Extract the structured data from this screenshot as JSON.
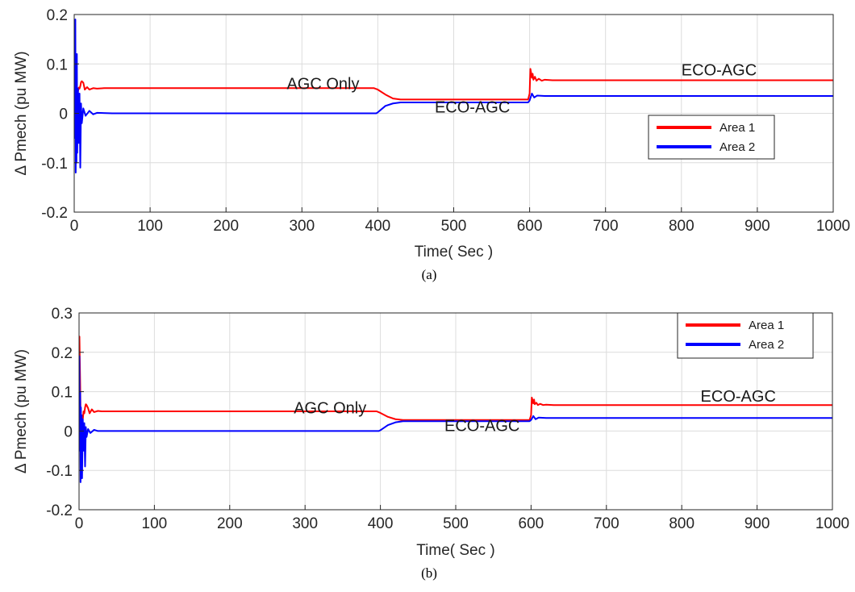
{
  "chart_data": [
    {
      "type": "line",
      "panel": "(a)",
      "caption": "(a)",
      "xlabel": "Time( Sec )",
      "ylabel": "Δ Pmech (pu MW)",
      "xlim": [
        0,
        1000
      ],
      "ylim": [
        -0.2,
        0.2
      ],
      "xticks": [
        0,
        100,
        200,
        300,
        400,
        500,
        600,
        700,
        800,
        900,
        1000
      ],
      "yticks": [
        -0.2,
        -0.1,
        0,
        0.1,
        0.2
      ],
      "ytick_labels": [
        "-0.2",
        "-0.1",
        "0",
        "0.1",
        "0.2"
      ],
      "grid": true,
      "legend_position": "right",
      "series": [
        {
          "name": "Area 1",
          "color": "#ff0000",
          "x": [
            0,
            0.5,
            1,
            1.5,
            2,
            3,
            4,
            5,
            6,
            7,
            8,
            9,
            10,
            12,
            14,
            17,
            20,
            25,
            30,
            40,
            60,
            100,
            200,
            300,
            395,
            400,
            410,
            420,
            430,
            500,
            598,
            600,
            601,
            602,
            603,
            604,
            605,
            607,
            609,
            612,
            616,
            620,
            630,
            700,
            800,
            900,
            1000
          ],
          "y": [
            0,
            0.185,
            0.15,
            0.11,
            0.04,
            0.02,
            0.035,
            0.045,
            0.052,
            0.05,
            0.055,
            0.063,
            0.065,
            0.062,
            0.048,
            0.053,
            0.048,
            0.051,
            0.05,
            0.051,
            0.051,
            0.051,
            0.051,
            0.051,
            0.051,
            0.048,
            0.038,
            0.03,
            0.028,
            0.028,
            0.028,
            0.04,
            0.09,
            0.082,
            0.072,
            0.08,
            0.068,
            0.074,
            0.066,
            0.07,
            0.066,
            0.068,
            0.067,
            0.067,
            0.067,
            0.067,
            0.067
          ]
        },
        {
          "name": "Area 2",
          "color": "#0000ff",
          "x": [
            0,
            0.5,
            1,
            1.5,
            2,
            2.5,
            3,
            3.5,
            4,
            5,
            6,
            7,
            8,
            9,
            10,
            12,
            15,
            20,
            25,
            30,
            50,
            100,
            200,
            300,
            398,
            400,
            410,
            420,
            430,
            500,
            598,
            600,
            603,
            606,
            610,
            620,
            700,
            800,
            900,
            1000
          ],
          "y": [
            0,
            0.18,
            -0.05,
            0.19,
            -0.12,
            0.09,
            -0.1,
            0.12,
            -0.08,
            0.05,
            -0.06,
            0.04,
            -0.11,
            0.02,
            -0.02,
            0.01,
            -0.005,
            0.005,
            -0.002,
            0.001,
            0,
            0,
            0,
            0,
            0,
            0.002,
            0.015,
            0.02,
            0.022,
            0.022,
            0.022,
            0.026,
            0.04,
            0.032,
            0.036,
            0.035,
            0.035,
            0.035,
            0.035,
            0.035
          ]
        }
      ],
      "annotations": [
        {
          "text": "AGC Only",
          "x": 280,
          "y": 0.049
        },
        {
          "text": "ECO-AGC",
          "x": 475,
          "y": 0.002
        },
        {
          "text": "ECO-AGC",
          "x": 800,
          "y": 0.077
        }
      ]
    },
    {
      "type": "line",
      "panel": "(b)",
      "caption": "(b)",
      "xlabel": "Time( Sec )",
      "ylabel": "Δ Pmech (pu MW)",
      "xlim": [
        0,
        1000
      ],
      "ylim": [
        -0.2,
        0.3
      ],
      "xticks": [
        0,
        100,
        200,
        300,
        400,
        500,
        600,
        700,
        800,
        900,
        1000
      ],
      "yticks": [
        -0.2,
        -0.1,
        0,
        0.1,
        0.2,
        0.3
      ],
      "ytick_labels": [
        "-0.2",
        "-0.1",
        "0",
        "0.1",
        "0.2",
        "0.3"
      ],
      "grid": true,
      "legend_position": "top-right",
      "series": [
        {
          "name": "Area 1",
          "color": "#ff0000",
          "x": [
            0,
            0.5,
            1,
            1.5,
            2,
            3,
            4,
            5,
            6,
            7,
            8,
            9,
            10,
            12,
            14,
            17,
            20,
            25,
            30,
            40,
            60,
            100,
            200,
            300,
            395,
            400,
            410,
            420,
            430,
            500,
            598,
            600,
            601,
            602,
            603,
            604,
            605,
            607,
            609,
            612,
            616,
            620,
            630,
            700,
            800,
            900,
            1000
          ],
          "y": [
            0,
            0.24,
            0.18,
            0.12,
            0.05,
            0.01,
            0.04,
            0.03,
            0.05,
            0.045,
            0.06,
            0.068,
            0.066,
            0.058,
            0.045,
            0.055,
            0.048,
            0.051,
            0.05,
            0.05,
            0.05,
            0.05,
            0.05,
            0.05,
            0.05,
            0.046,
            0.036,
            0.03,
            0.028,
            0.028,
            0.028,
            0.04,
            0.085,
            0.078,
            0.07,
            0.08,
            0.068,
            0.072,
            0.066,
            0.069,
            0.066,
            0.067,
            0.066,
            0.066,
            0.066,
            0.066,
            0.066
          ]
        },
        {
          "name": "Area 2",
          "color": "#0000ff",
          "x": [
            0,
            0.5,
            1,
            1.5,
            2,
            2.5,
            3,
            3.5,
            4,
            5,
            6,
            7,
            8,
            9,
            10,
            12,
            15,
            20,
            25,
            30,
            50,
            100,
            200,
            300,
            398,
            400,
            410,
            420,
            430,
            500,
            598,
            600,
            603,
            606,
            610,
            620,
            700,
            800,
            900,
            1000
          ],
          "y": [
            0,
            0.19,
            -0.05,
            0.1,
            -0.13,
            0.06,
            -0.08,
            0.04,
            -0.12,
            0.03,
            -0.05,
            0.02,
            -0.09,
            0.01,
            -0.015,
            0.005,
            -0.005,
            0.003,
            0,
            0,
            0,
            0,
            0,
            0,
            0,
            0.002,
            0.015,
            0.022,
            0.025,
            0.025,
            0.025,
            0.028,
            0.038,
            0.03,
            0.034,
            0.033,
            0.033,
            0.033,
            0.033,
            0.033
          ]
        }
      ],
      "annotations": [
        {
          "text": "AGC Only",
          "x": 285,
          "y": 0.045
        },
        {
          "text": "ECO-AGC",
          "x": 485,
          "y": 0.0
        },
        {
          "text": "ECO-AGC",
          "x": 825,
          "y": 0.075
        }
      ]
    }
  ]
}
